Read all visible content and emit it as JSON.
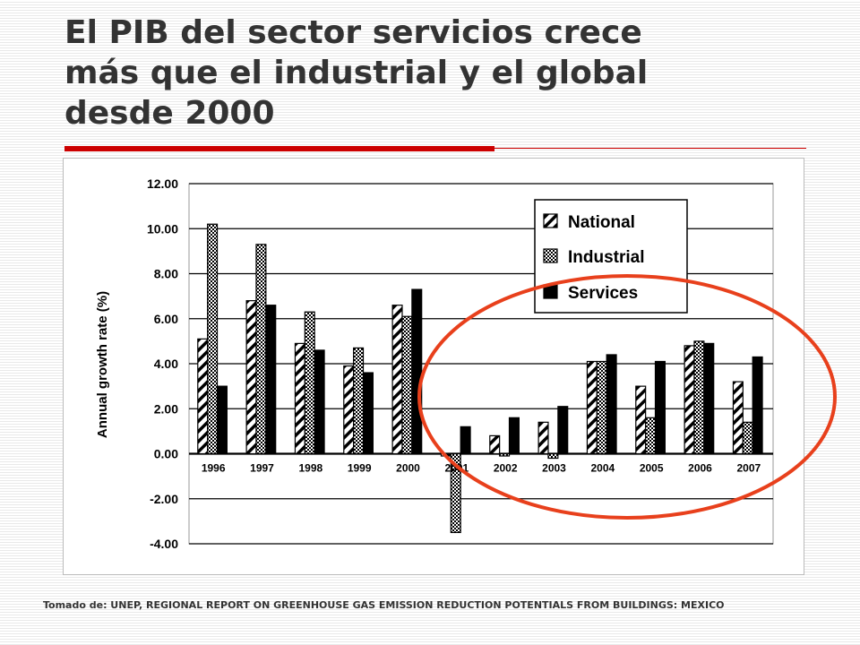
{
  "slide": {
    "title_lines": [
      "El PIB del sector servicios crece",
      "más que el industrial y el global",
      "desde 2000"
    ],
    "source_note": "Tomado de: UNEP, REGIONAL REPORT ON GREENHOUSE GAS EMISSION REDUCTION POTENTIALS FROM BUILDINGS: MEXICO",
    "accent_color": "#cc0000",
    "highlight_ellipse_color": "#e8401c"
  },
  "chart_data": {
    "type": "bar",
    "title": "",
    "xlabel": "",
    "ylabel": "Annual growth rate (%)",
    "ylim": [
      -4,
      12
    ],
    "yticks": [
      "-4.00",
      "-2.00",
      "0.00",
      "2.00",
      "4.00",
      "6.00",
      "8.00",
      "10.00",
      "12.00"
    ],
    "grid": true,
    "legend_position": "top-right",
    "categories": [
      "1996",
      "1997",
      "1998",
      "1999",
      "2000",
      "2001",
      "2002",
      "2003",
      "2004",
      "2005",
      "2006",
      "2007"
    ],
    "series": [
      {
        "name": "National",
        "pattern": "diagonal-hatch",
        "values": [
          5.1,
          6.8,
          4.9,
          3.9,
          6.6,
          -0.1,
          0.8,
          1.4,
          4.1,
          3.0,
          4.8,
          3.2
        ]
      },
      {
        "name": "Industrial",
        "pattern": "crosshatch",
        "values": [
          10.2,
          9.3,
          6.3,
          4.7,
          6.1,
          -3.5,
          -0.1,
          -0.2,
          4.1,
          1.6,
          5.0,
          1.4
        ]
      },
      {
        "name": "Services",
        "pattern": "solid",
        "values": [
          3.0,
          6.6,
          4.6,
          3.6,
          7.3,
          1.2,
          1.6,
          2.1,
          4.4,
          4.1,
          4.9,
          4.3
        ]
      }
    ]
  }
}
